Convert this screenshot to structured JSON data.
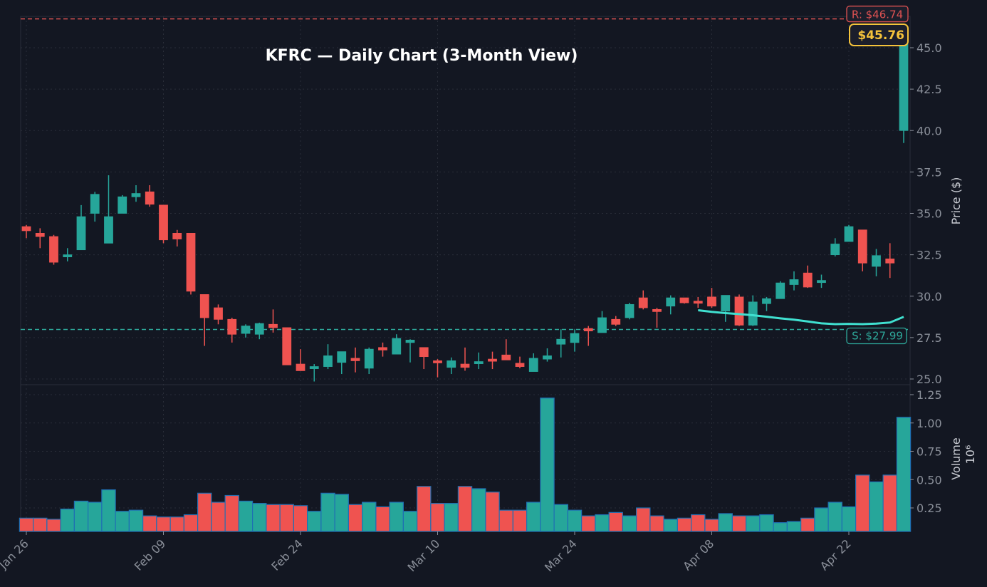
{
  "chart_data": {
    "type": "candlestick",
    "title": "KFRC — Daily Chart (3-Month View)",
    "ticker": "KFRC",
    "xlabel": "",
    "ylabel": "Price ($)",
    "volume_ylabel": "Volume",
    "volume_scale_label": "10⁶",
    "price_ylim": [
      24.6,
      47.4
    ],
    "price_yticks": [
      25.0,
      27.5,
      30.0,
      32.5,
      35.0,
      37.5,
      40.0,
      42.5,
      45.0
    ],
    "volume_ylim": [
      0.04,
      1.33
    ],
    "volume_yticks": [
      0.25,
      0.5,
      0.75,
      1.0,
      1.25
    ],
    "x_tick_labels": [
      {
        "label": "Jan 26",
        "index": 0
      },
      {
        "label": "Feb 09",
        "index": 10
      },
      {
        "label": "Feb 24",
        "index": 20
      },
      {
        "label": "Mar 10",
        "index": 30
      },
      {
        "label": "Mar 24",
        "index": 40
      },
      {
        "label": "Apr 08",
        "index": 50
      },
      {
        "label": "Apr 22",
        "index": 60
      }
    ],
    "grid": true,
    "resistance": {
      "label": "R: $46.74",
      "value": 46.74,
      "color": "#e05252"
    },
    "support": {
      "label": "S: $27.99",
      "value": 27.99,
      "color": "#2ea89a"
    },
    "last_price": {
      "label": "$45.76",
      "value": 45.76,
      "color": "#f5c33b"
    },
    "colors": {
      "up": "#26a69a",
      "down": "#ef5350",
      "ma": "#40e0d0",
      "background": "#131722",
      "grid": "#2a2e39"
    },
    "candles": [
      {
        "o": 34.2,
        "h": 34.3,
        "l": 33.5,
        "c": 33.95,
        "v": 0.16
      },
      {
        "o": 33.8,
        "h": 34.1,
        "l": 32.9,
        "c": 33.6,
        "v": 0.16
      },
      {
        "o": 33.6,
        "h": 33.7,
        "l": 31.9,
        "c": 32.05,
        "v": 0.15
      },
      {
        "o": 32.4,
        "h": 32.9,
        "l": 32.1,
        "c": 32.5,
        "v": 0.24
      },
      {
        "o": 32.8,
        "h": 35.5,
        "l": 32.8,
        "c": 34.8,
        "v": 0.31
      },
      {
        "o": 35.0,
        "h": 36.3,
        "l": 34.5,
        "c": 36.15,
        "v": 0.3
      },
      {
        "o": 33.2,
        "h": 37.3,
        "l": 33.2,
        "c": 34.8,
        "v": 0.41
      },
      {
        "o": 35.0,
        "h": 36.1,
        "l": 35.0,
        "c": 36.0,
        "v": 0.22
      },
      {
        "o": 36.0,
        "h": 36.7,
        "l": 35.7,
        "c": 36.2,
        "v": 0.23
      },
      {
        "o": 36.3,
        "h": 36.7,
        "l": 35.4,
        "c": 35.55,
        "v": 0.18
      },
      {
        "o": 35.5,
        "h": 35.5,
        "l": 33.2,
        "c": 33.4,
        "v": 0.17
      },
      {
        "o": 33.8,
        "h": 34.0,
        "l": 33.0,
        "c": 33.45,
        "v": 0.17
      },
      {
        "o": 33.8,
        "h": 33.8,
        "l": 30.1,
        "c": 30.3,
        "v": 0.19
      },
      {
        "o": 30.1,
        "h": 30.1,
        "l": 27.0,
        "c": 28.7,
        "v": 0.38
      },
      {
        "o": 29.3,
        "h": 29.5,
        "l": 28.3,
        "c": 28.6,
        "v": 0.3
      },
      {
        "o": 28.6,
        "h": 28.7,
        "l": 27.2,
        "c": 27.7,
        "v": 0.36
      },
      {
        "o": 27.75,
        "h": 28.3,
        "l": 27.5,
        "c": 28.2,
        "v": 0.31
      },
      {
        "o": 27.7,
        "h": 28.4,
        "l": 27.4,
        "c": 28.35,
        "v": 0.29
      },
      {
        "o": 28.3,
        "h": 29.2,
        "l": 27.8,
        "c": 28.1,
        "v": 0.28
      },
      {
        "o": 28.1,
        "h": 28.1,
        "l": 25.85,
        "c": 25.85,
        "v": 0.28
      },
      {
        "o": 25.9,
        "h": 26.8,
        "l": 25.5,
        "c": 25.5,
        "v": 0.27
      },
      {
        "o": 25.7,
        "h": 25.9,
        "l": 24.85,
        "c": 25.75,
        "v": 0.22
      },
      {
        "o": 25.75,
        "h": 27.1,
        "l": 25.6,
        "c": 26.4,
        "v": 0.38
      },
      {
        "o": 26.0,
        "h": 26.65,
        "l": 25.3,
        "c": 26.65,
        "v": 0.37
      },
      {
        "o": 26.25,
        "h": 26.9,
        "l": 25.4,
        "c": 26.1,
        "v": 0.28
      },
      {
        "o": 25.65,
        "h": 26.9,
        "l": 25.3,
        "c": 26.8,
        "v": 0.3
      },
      {
        "o": 26.9,
        "h": 27.2,
        "l": 26.35,
        "c": 26.75,
        "v": 0.26
      },
      {
        "o": 26.5,
        "h": 27.7,
        "l": 26.5,
        "c": 27.45,
        "v": 0.3
      },
      {
        "o": 27.2,
        "h": 27.4,
        "l": 26.0,
        "c": 27.35,
        "v": 0.22
      },
      {
        "o": 26.9,
        "h": 26.9,
        "l": 25.6,
        "c": 26.35,
        "v": 0.44
      },
      {
        "o": 26.1,
        "h": 26.2,
        "l": 25.1,
        "c": 26.0,
        "v": 0.29
      },
      {
        "o": 25.7,
        "h": 26.3,
        "l": 25.3,
        "c": 26.1,
        "v": 0.29
      },
      {
        "o": 25.9,
        "h": 26.9,
        "l": 25.5,
        "c": 25.7,
        "v": 0.44
      },
      {
        "o": 25.95,
        "h": 26.6,
        "l": 25.6,
        "c": 26.05,
        "v": 0.42
      },
      {
        "o": 26.2,
        "h": 26.65,
        "l": 25.6,
        "c": 26.1,
        "v": 0.39
      },
      {
        "o": 26.45,
        "h": 27.4,
        "l": 26.2,
        "c": 26.15,
        "v": 0.23
      },
      {
        "o": 25.95,
        "h": 26.35,
        "l": 25.65,
        "c": 25.75,
        "v": 0.23
      },
      {
        "o": 25.45,
        "h": 26.55,
        "l": 25.45,
        "c": 26.25,
        "v": 0.3
      },
      {
        "o": 26.2,
        "h": 26.85,
        "l": 26.05,
        "c": 26.4,
        "v": 1.22
      },
      {
        "o": 27.1,
        "h": 28.0,
        "l": 26.3,
        "c": 27.4,
        "v": 0.28
      },
      {
        "o": 27.2,
        "h": 28.0,
        "l": 26.65,
        "c": 27.75,
        "v": 0.23
      },
      {
        "o": 28.05,
        "h": 28.2,
        "l": 27.0,
        "c": 27.9,
        "v": 0.18
      },
      {
        "o": 27.8,
        "h": 29.1,
        "l": 27.8,
        "c": 28.7,
        "v": 0.19
      },
      {
        "o": 28.6,
        "h": 28.8,
        "l": 28.2,
        "c": 28.3,
        "v": 0.21
      },
      {
        "o": 28.7,
        "h": 29.6,
        "l": 28.6,
        "c": 29.5,
        "v": 0.18
      },
      {
        "o": 29.9,
        "h": 30.35,
        "l": 29.2,
        "c": 29.3,
        "v": 0.25
      },
      {
        "o": 29.2,
        "h": 29.3,
        "l": 28.1,
        "c": 29.1,
        "v": 0.18
      },
      {
        "o": 29.4,
        "h": 30.05,
        "l": 28.9,
        "c": 29.9,
        "v": 0.15
      },
      {
        "o": 29.9,
        "h": 29.9,
        "l": 29.55,
        "c": 29.6,
        "v": 0.16
      },
      {
        "o": 29.7,
        "h": 29.95,
        "l": 29.3,
        "c": 29.6,
        "v": 0.19
      },
      {
        "o": 29.95,
        "h": 30.5,
        "l": 29.3,
        "c": 29.4,
        "v": 0.15
      },
      {
        "o": 29.1,
        "h": 30.05,
        "l": 28.45,
        "c": 30.05,
        "v": 0.2
      },
      {
        "o": 29.95,
        "h": 30.1,
        "l": 28.2,
        "c": 28.25,
        "v": 0.18
      },
      {
        "o": 28.25,
        "h": 30.05,
        "l": 28.2,
        "c": 29.65,
        "v": 0.18
      },
      {
        "o": 29.55,
        "h": 29.95,
        "l": 29.1,
        "c": 29.85,
        "v": 0.19
      },
      {
        "o": 29.85,
        "h": 30.9,
        "l": 29.85,
        "c": 30.8,
        "v": 0.12
      },
      {
        "o": 30.7,
        "h": 31.5,
        "l": 30.35,
        "c": 31.0,
        "v": 0.13
      },
      {
        "o": 31.4,
        "h": 31.85,
        "l": 30.5,
        "c": 30.55,
        "v": 0.16
      },
      {
        "o": 30.85,
        "h": 31.3,
        "l": 30.5,
        "c": 30.95,
        "v": 0.25
      },
      {
        "o": 32.5,
        "h": 33.5,
        "l": 32.4,
        "c": 33.15,
        "v": 0.3
      },
      {
        "o": 33.3,
        "h": 34.3,
        "l": 33.3,
        "c": 34.2,
        "v": 0.26
      },
      {
        "o": 34.0,
        "h": 34.0,
        "l": 31.5,
        "c": 32.0,
        "v": 0.54
      },
      {
        "o": 31.8,
        "h": 32.85,
        "l": 31.2,
        "c": 32.45,
        "v": 0.48
      },
      {
        "o": 32.25,
        "h": 33.2,
        "l": 31.1,
        "c": 32.0,
        "v": 0.54
      },
      {
        "o": 40.0,
        "h": 45.76,
        "l": 39.25,
        "c": 45.76,
        "v": 1.05
      }
    ],
    "moving_average": {
      "start_index": 49,
      "values": [
        29.15,
        29.05,
        28.98,
        28.92,
        28.85,
        28.76,
        28.66,
        28.58,
        28.47,
        28.36,
        28.31,
        28.33,
        28.31,
        28.34,
        28.41,
        28.75
      ]
    }
  }
}
